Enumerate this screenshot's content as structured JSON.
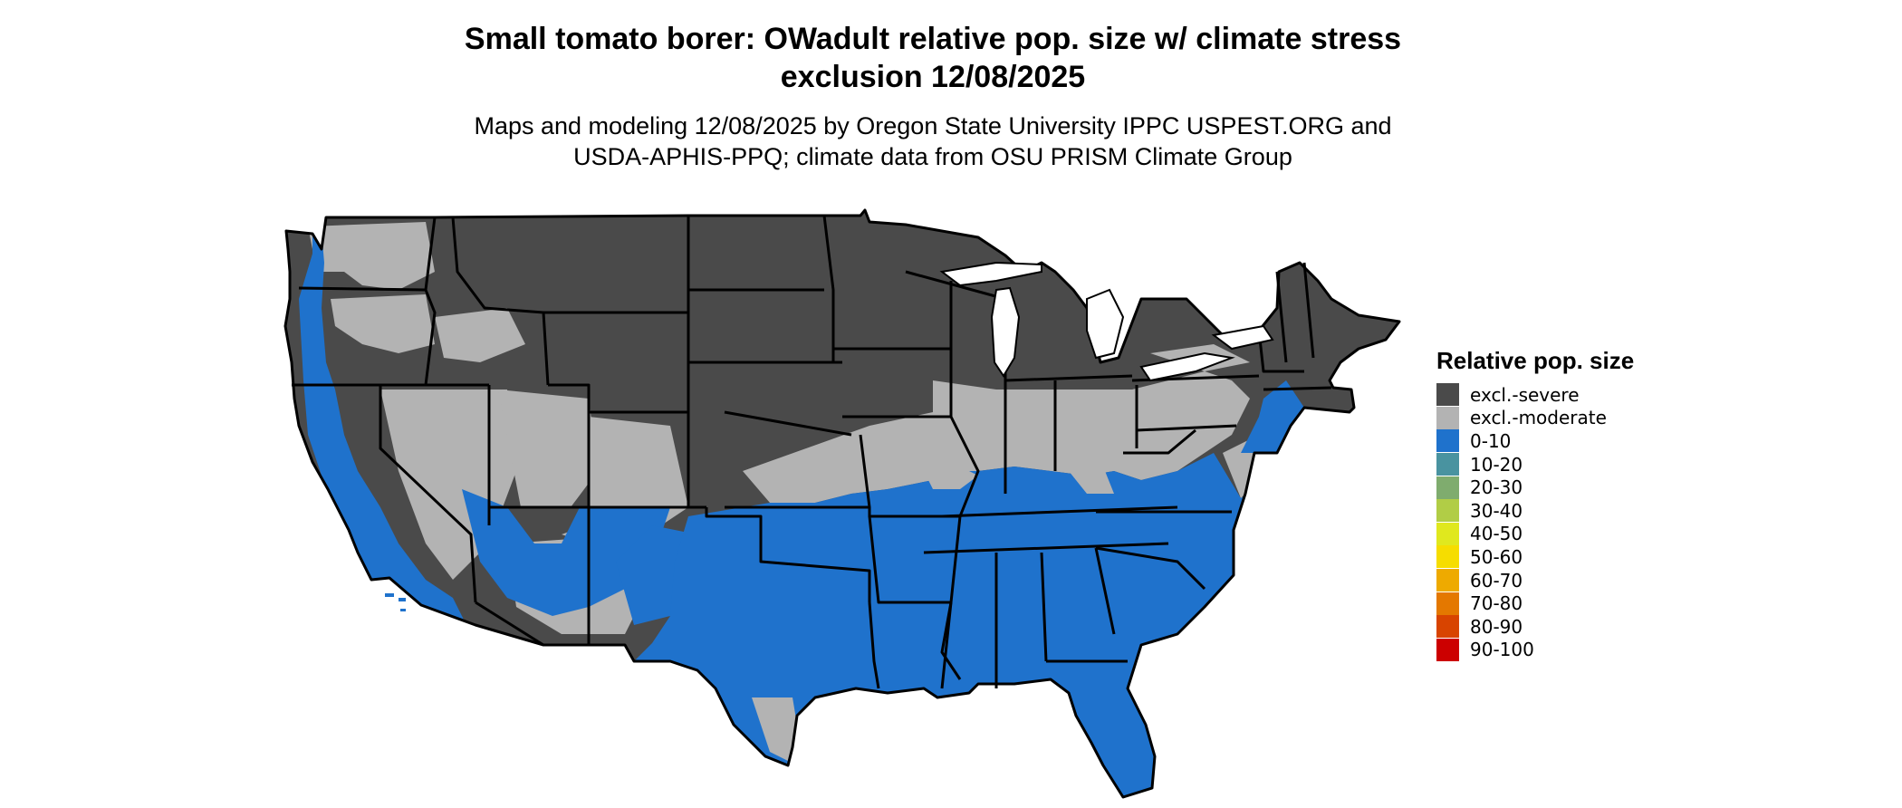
{
  "title": "Small tomato borer: OWadult relative pop. size w/ climate stress\nexclusion 12/08/2025",
  "subtitle": "Maps and modeling 12/08/2025 by Oregon State University IPPC USPEST.ORG and\nUSDA-APHIS-PPQ; climate data from OSU PRISM Climate Group",
  "legend": {
    "title": "Relative pop. size",
    "items": [
      {
        "label": "excl.-severe",
        "color": "#4a4a4a"
      },
      {
        "label": "excl.-moderate",
        "color": "#b3b3b3"
      },
      {
        "label": "0-10",
        "color": "#1f72cc"
      },
      {
        "label": "10-20",
        "color": "#4993a0"
      },
      {
        "label": "20-30",
        "color": "#7fac6e"
      },
      {
        "label": "30-40",
        "color": "#b1cd46"
      },
      {
        "label": "40-50",
        "color": "#e0e81e"
      },
      {
        "label": "50-60",
        "color": "#f6dd00"
      },
      {
        "label": "60-70",
        "color": "#eeaa00"
      },
      {
        "label": "70-80",
        "color": "#e47800"
      },
      {
        "label": "80-90",
        "color": "#d84400"
      },
      {
        "label": "90-100",
        "color": "#cc0000"
      }
    ]
  },
  "map": {
    "colors": {
      "severe": "#4a4a4a",
      "moderate": "#b3b3b3",
      "low": "#1f72cc",
      "border": "#000000"
    }
  }
}
